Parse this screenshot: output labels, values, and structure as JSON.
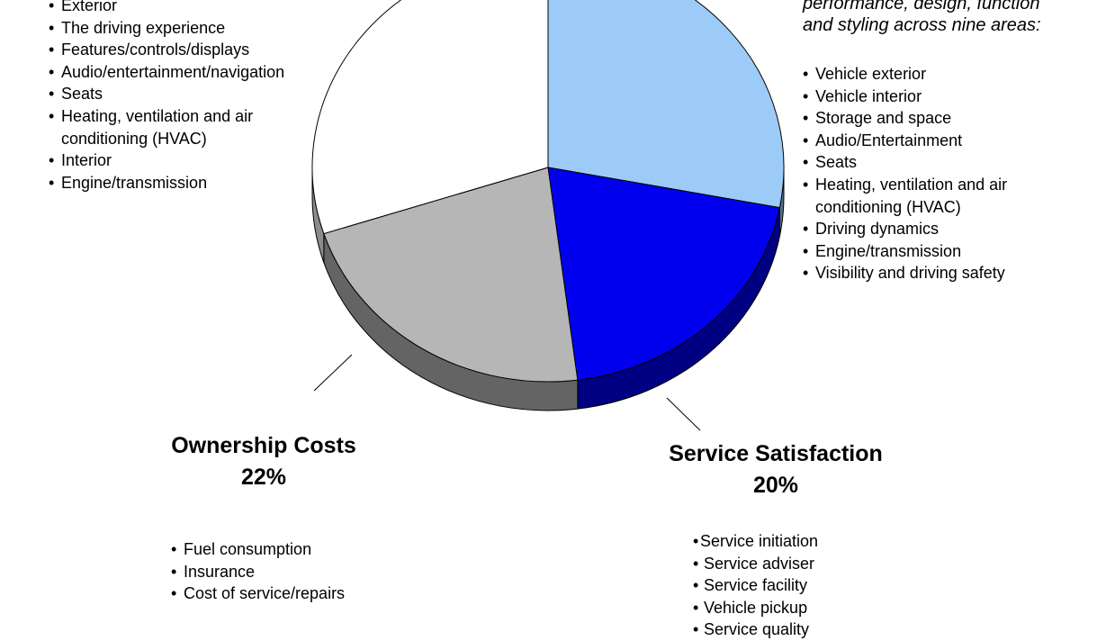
{
  "chart_data": {
    "type": "pie",
    "slices": [
      {
        "label": "",
        "value": 28,
        "color": "#9ccbf8"
      },
      {
        "label": "Service Satisfaction",
        "value": 20,
        "color": "#0000ee"
      },
      {
        "label": "Ownership Costs",
        "value": 22,
        "color": "#b6b6b6"
      },
      {
        "label": "",
        "value": 30,
        "color": "#ffffff"
      }
    ],
    "slice_labels": [
      {
        "name": "Ownership Costs",
        "value_text": "22%"
      },
      {
        "name": "Service Satisfaction",
        "value_text": "20%"
      }
    ],
    "title": "",
    "legend": "none"
  },
  "left_factors": [
    "Exterior",
    "The driving experience",
    "Features/controls/displays",
    "Audio/entertainment/navigation",
    "Seats",
    "Heating, ventilation and air",
    "conditioning (HVAC)",
    "Interior",
    "Engine/transmission"
  ],
  "right_note_lines": [
    "performance, design, function",
    "and styling across nine areas:"
  ],
  "right_factors": [
    "Vehicle exterior",
    "Vehicle interior",
    "Storage and space",
    "Audio/Entertainment",
    "Seats",
    "Heating, ventilation and air",
    "conditioning (HVAC)",
    "Driving dynamics",
    "Engine/transmission",
    "Visibility and driving safety"
  ],
  "ownership_factors": [
    "Fuel consumption",
    "Insurance",
    "Cost of service/repairs"
  ],
  "service_factors": [
    "Service initiation",
    "Service adviser",
    "Service facility",
    "Vehicle pickup",
    "Service quality"
  ],
  "colors": {
    "light_blue": "#9ccbf8",
    "blue": "#0000ee",
    "gray": "#b6b6b6",
    "white": "#ffffff"
  }
}
